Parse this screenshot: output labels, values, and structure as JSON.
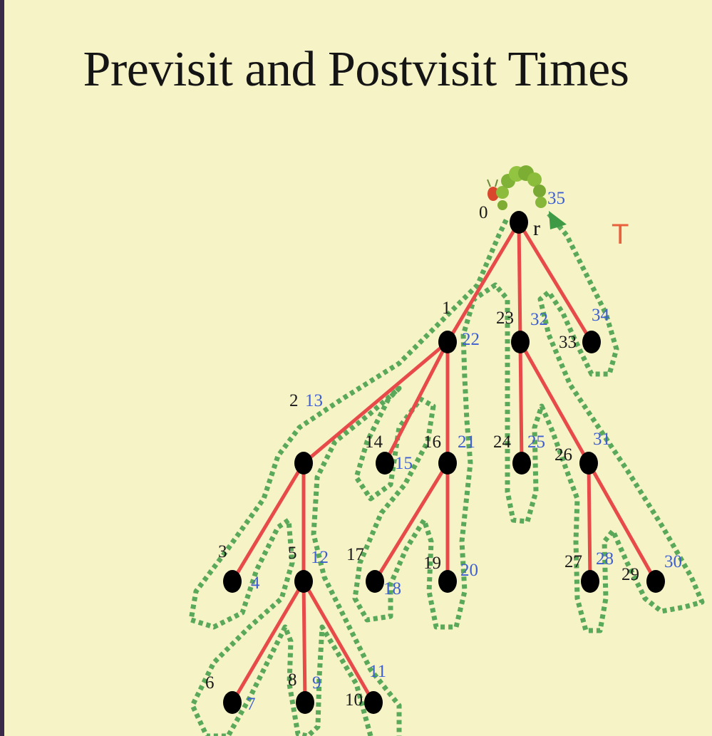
{
  "title": "Previsit and Postvisit Times",
  "tree_label": "T",
  "root_label": "r",
  "colors": {
    "background": "#f6f3c6",
    "edge": "#e84a4a",
    "node": "#000000",
    "path": "#3e9a45",
    "previsit_text": "#1a1a1a",
    "postvisit_text": "#3d5fd1",
    "tree_label": "#e8603c"
  },
  "icons": [
    "caterpillar-icon",
    "arrow-head-icon"
  ],
  "nodes": [
    {
      "id": "r",
      "pre": "0",
      "post": "35",
      "parent": null
    },
    {
      "id": "a",
      "pre": "1",
      "post": "22",
      "parent": "r"
    },
    {
      "id": "b",
      "pre": "23",
      "post": "32",
      "parent": "r"
    },
    {
      "id": "c",
      "pre": "33",
      "post": "34",
      "parent": "r"
    },
    {
      "id": "d",
      "pre": "2",
      "post": "13",
      "parent": "a"
    },
    {
      "id": "e",
      "pre": "14",
      "post": "15",
      "parent": "a"
    },
    {
      "id": "f",
      "pre": "16",
      "post": "21",
      "parent": "a"
    },
    {
      "id": "g",
      "pre": "24",
      "post": "25",
      "parent": "b"
    },
    {
      "id": "h",
      "pre": "26",
      "post": "31",
      "parent": "b"
    },
    {
      "id": "i",
      "pre": "3",
      "post": "4",
      "parent": "d"
    },
    {
      "id": "j",
      "pre": "5",
      "post": "12",
      "parent": "d"
    },
    {
      "id": "k",
      "pre": "17",
      "post": "18",
      "parent": "f"
    },
    {
      "id": "l",
      "pre": "19",
      "post": "20",
      "parent": "f"
    },
    {
      "id": "m",
      "pre": "27",
      "post": "28",
      "parent": "h"
    },
    {
      "id": "n",
      "pre": "29",
      "post": "30",
      "parent": "h"
    },
    {
      "id": "o",
      "pre": "6",
      "post": "7",
      "parent": "j"
    },
    {
      "id": "p",
      "pre": "8",
      "post": "9",
      "parent": "j"
    },
    {
      "id": "q",
      "pre": "10",
      "post": "11",
      "parent": "j"
    }
  ]
}
